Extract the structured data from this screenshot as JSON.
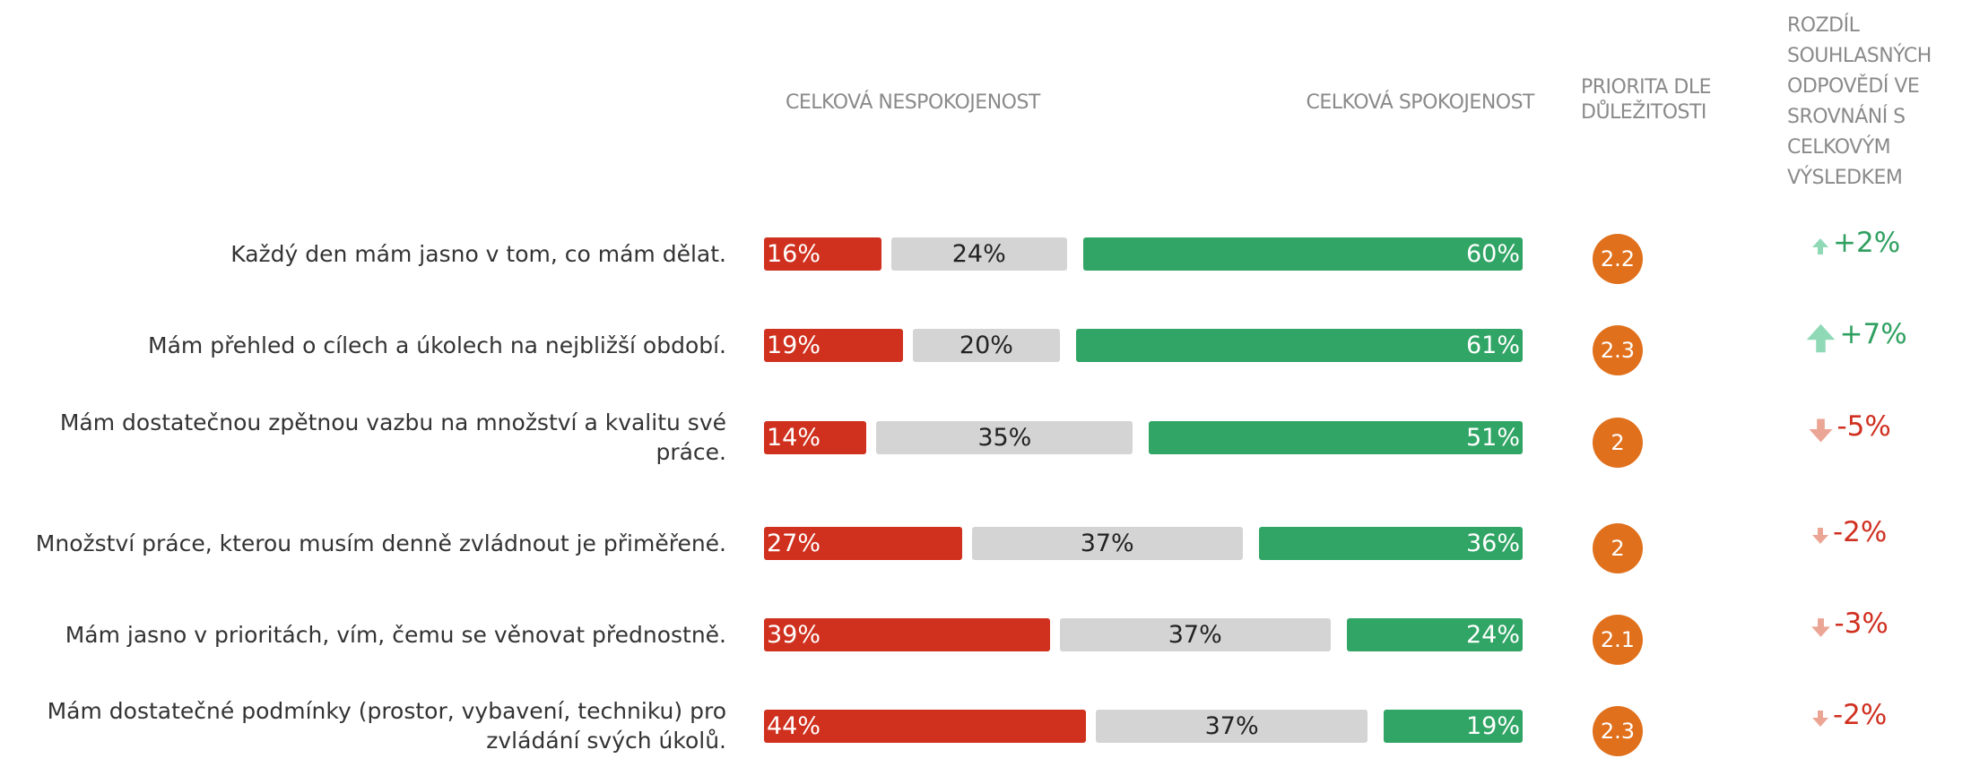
{
  "chart_data": {
    "type": "bar",
    "orientation": "horizontal",
    "stacked": true,
    "categories": [
      "Každý den mám jasno v tom, co mám dělat.",
      "Mám přehled o cílech a úkolech na nejbližší období.",
      "Mám dostatečnou zpětnou vazbu na množství a kvalitu své práce.",
      "Množství práce, kterou musím denně zvládnout je přiměřené.",
      "Mám jasno v prioritách, vím, čemu se věnovat přednostně.",
      "Mám dostatečné podmínky (prostor, vybavení, techniku) pro zvládání svých úkolů."
    ],
    "series": [
      {
        "name": "CELKOVÁ NESPOKOJENOST",
        "color": "#d0301e",
        "values": [
          16,
          19,
          14,
          27,
          39,
          44
        ],
        "value_labels": [
          "16%",
          "19%",
          "14%",
          "27%",
          "39%",
          "44%"
        ]
      },
      {
        "color": "#d4d4d4",
        "values": [
          24,
          20,
          35,
          37,
          37,
          37
        ],
        "value_labels": [
          "24%",
          "20%",
          "35%",
          "37%",
          "37%",
          "37%"
        ]
      },
      {
        "name": "CELKOVÁ SPOKOJENOST",
        "color": "#30a565",
        "values": [
          60,
          61,
          51,
          36,
          24,
          19
        ],
        "value_labels": [
          "60%",
          "61%",
          "51%",
          "36%",
          "24%",
          "19%"
        ]
      }
    ],
    "priority": {
      "name": "PRIORITA DLE DŮLEŽITOSTI",
      "color": "#e0701c",
      "values": [
        2.2,
        2.3,
        2,
        2,
        2.1,
        2.3
      ]
    },
    "difference": {
      "name": "ROZDÍL SOUHLASNÝCH ODPOVĚDÍ VE SROVNÁNÍ S CELKOVÝM VÝSLEDKEM",
      "positive_color": "#2fa060",
      "negative_color": "#d03020",
      "values": [
        2,
        7,
        -5,
        -2,
        -3,
        -2
      ],
      "value_labels": [
        "+2%",
        "+7%",
        "-5%",
        "-2%",
        "-3%",
        "-2%"
      ]
    }
  }
}
